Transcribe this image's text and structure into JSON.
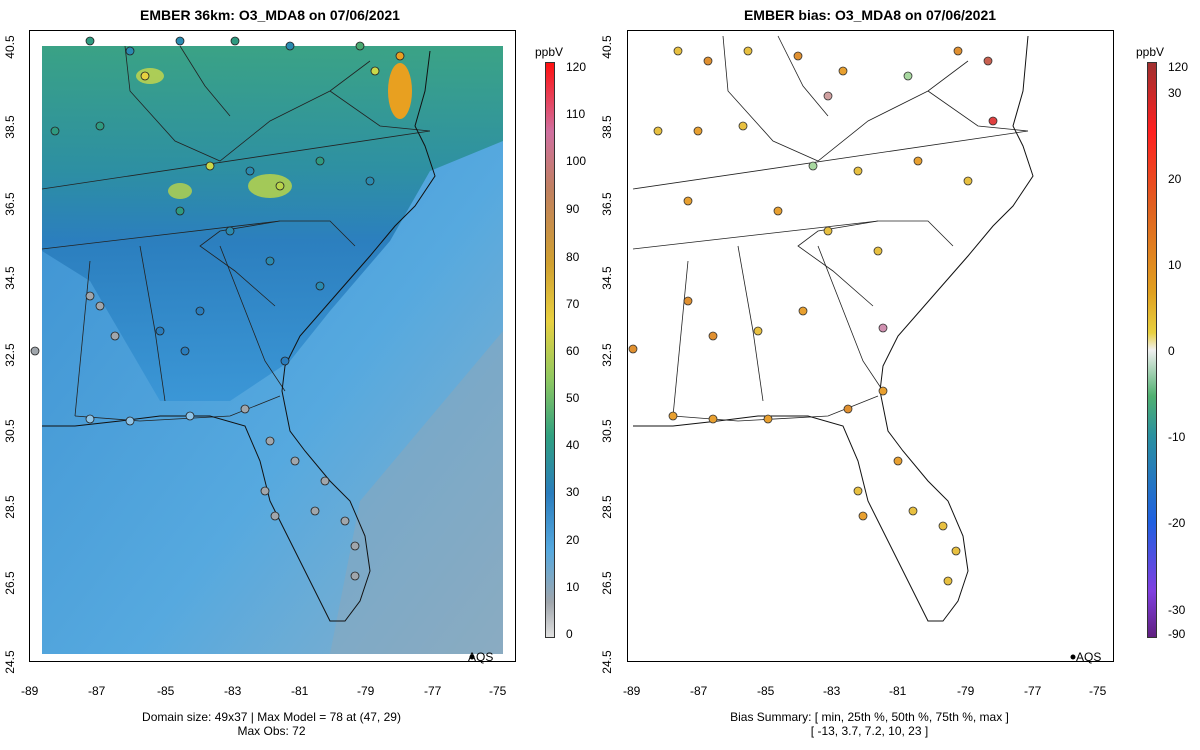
{
  "left": {
    "title": "EMBER 36km: O3_MDA8 on 07/06/2021",
    "x_ticks": [
      "-89",
      "-87",
      "-85",
      "-83",
      "-81",
      "-79",
      "-77",
      "-75"
    ],
    "y_ticks": [
      "40.5",
      "38.5",
      "36.5",
      "34.5",
      "32.5",
      "30.5",
      "28.5",
      "26.5",
      "24.5"
    ],
    "legend_label": "AQS",
    "colorbar": {
      "unit": "ppbV",
      "ticks": [
        "120",
        "110",
        "100",
        "90",
        "80",
        "70",
        "60",
        "50",
        "40",
        "30",
        "20",
        "10",
        "0"
      ]
    },
    "footer_line1": "Domain size: 49x37 | Max Model = 78 at (47, 29)",
    "footer_line2": "Max Obs: 72"
  },
  "right": {
    "title": "EMBER bias: O3_MDA8 on 07/06/2021",
    "x_ticks": [
      "-89",
      "-87",
      "-85",
      "-83",
      "-81",
      "-79",
      "-77",
      "-75"
    ],
    "y_ticks": [
      "40.5",
      "38.5",
      "36.5",
      "34.5",
      "32.5",
      "30.5",
      "28.5",
      "26.5",
      "24.5"
    ],
    "legend_label": "AQS",
    "colorbar": {
      "unit": "ppbV",
      "ticks": [
        "120",
        "30",
        "20",
        "10",
        "0",
        "-10",
        "-20",
        "-30",
        "-90"
      ]
    },
    "footer_line1": "Bias Summary: [ min, 25th %, 50th %, 75th %, max ]",
    "footer_line2": "[ -13,   3.7,   7.2,   10,   23 ]"
  },
  "colors": {
    "ocean_far": "#56a5dd",
    "land_north": "#2f9a80",
    "land_south": "#2b7fbd",
    "hotspot": "#e8a020",
    "station_gray": "#a0a6ac"
  }
}
